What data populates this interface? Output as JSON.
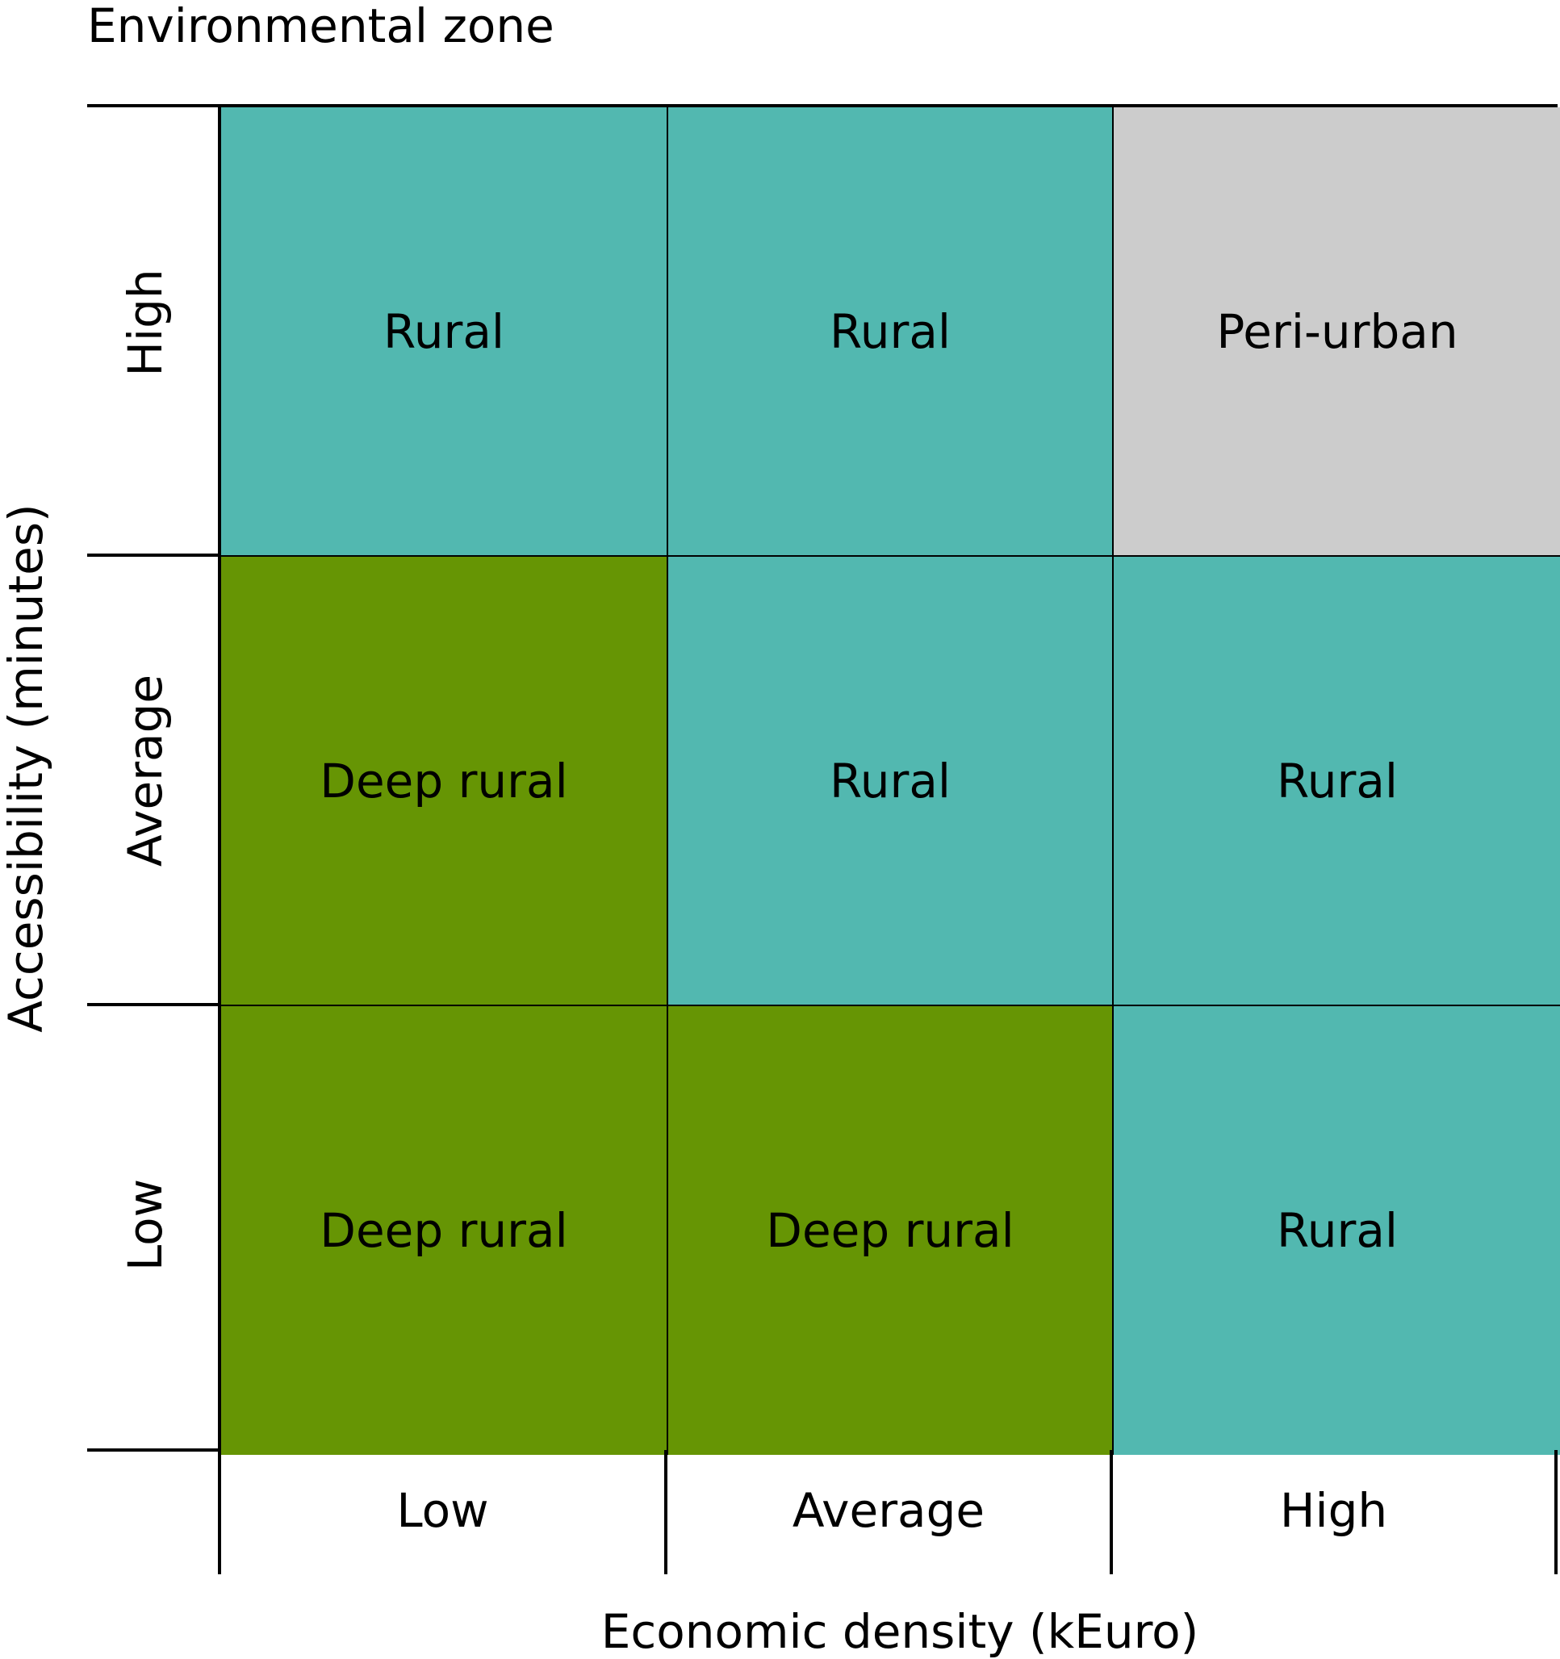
{
  "title": "Environmental zone",
  "x_axis": {
    "label": "Economic density (kEuro)",
    "categories": [
      "Low",
      "Average",
      "High"
    ]
  },
  "y_axis": {
    "label": "Accessibility (minutes)",
    "categories": [
      "High",
      "Average",
      "Low"
    ]
  },
  "colors": {
    "rural": "#52b8b0",
    "deep_rural": "#669504",
    "peri_urban": "#cccccc"
  },
  "cells": [
    {
      "row": "High",
      "col": "Low",
      "label": "Rural",
      "zone": "rural"
    },
    {
      "row": "High",
      "col": "Average",
      "label": "Rural",
      "zone": "rural"
    },
    {
      "row": "High",
      "col": "High",
      "label": "Peri-urban",
      "zone": "peri_urban"
    },
    {
      "row": "Average",
      "col": "Low",
      "label": "Deep rural",
      "zone": "deep_rural"
    },
    {
      "row": "Average",
      "col": "Average",
      "label": "Rural",
      "zone": "rural"
    },
    {
      "row": "Average",
      "col": "High",
      "label": "Rural",
      "zone": "rural"
    },
    {
      "row": "Low",
      "col": "Low",
      "label": "Deep rural",
      "zone": "deep_rural"
    },
    {
      "row": "Low",
      "col": "Average",
      "label": "Deep rural",
      "zone": "deep_rural"
    },
    {
      "row": "Low",
      "col": "High",
      "label": "Rural",
      "zone": "rural"
    }
  ]
}
